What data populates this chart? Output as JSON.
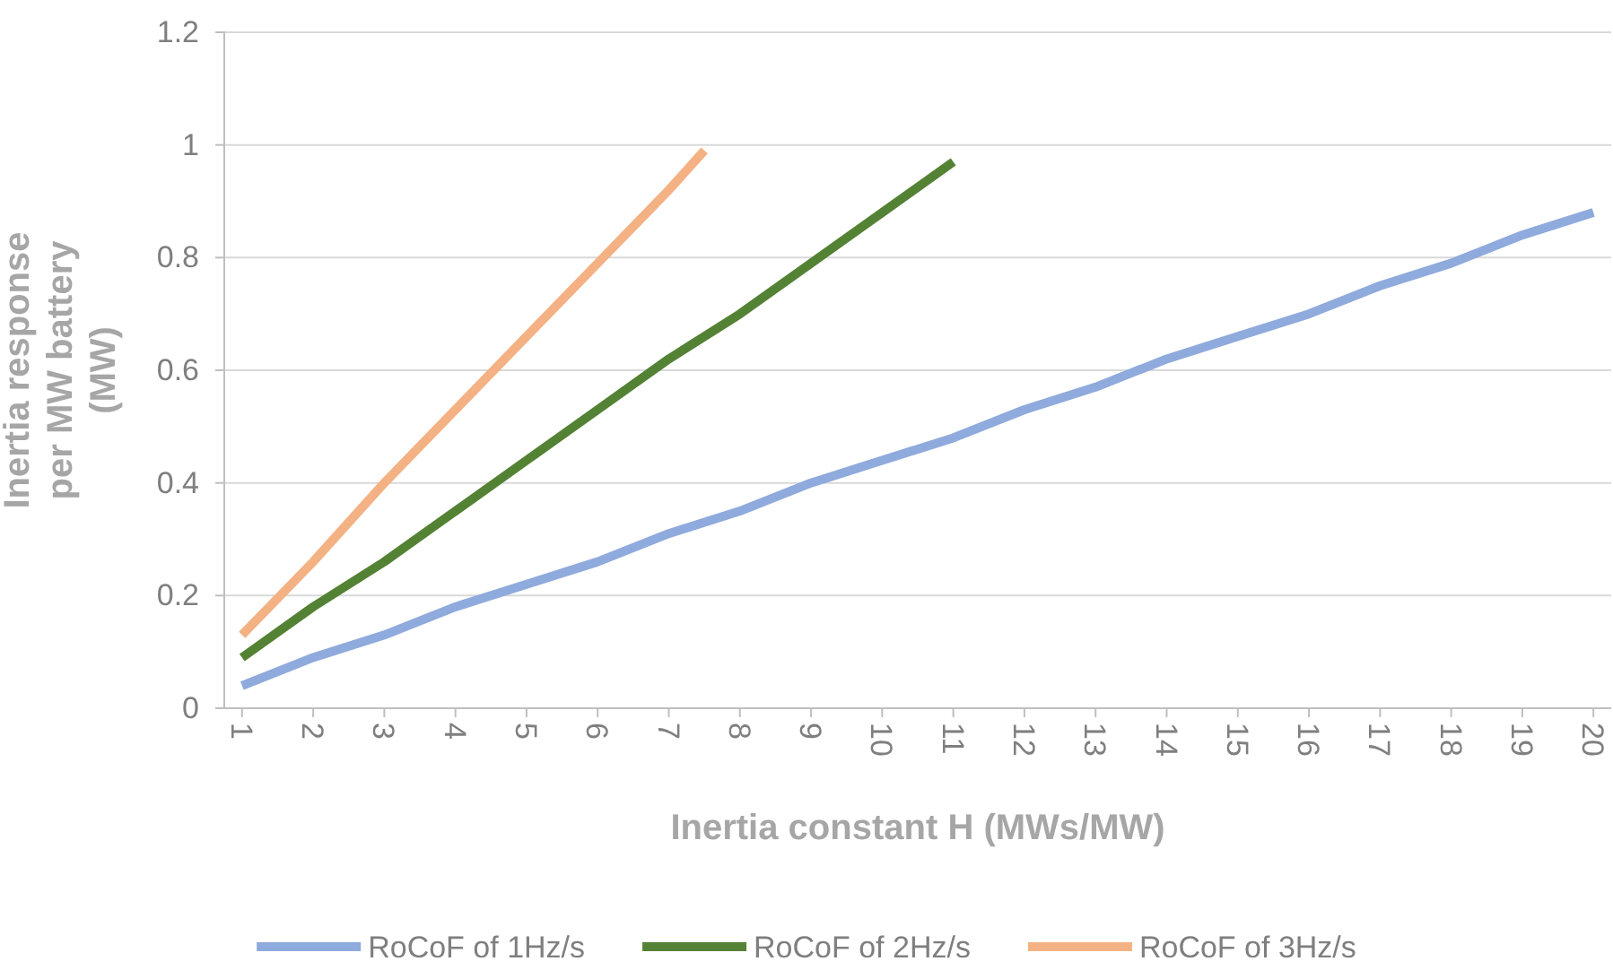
{
  "chart_data": {
    "type": "line",
    "xlabel": "Inertia constant H (MWs/MW)",
    "ylabel": "Inertia response per MW battery (MW)",
    "xlim": [
      0.75,
      20.25
    ],
    "xticks": [
      1,
      2,
      3,
      4,
      5,
      6,
      7,
      8,
      9,
      10,
      11,
      12,
      13,
      14,
      15,
      16,
      17,
      18,
      19,
      20
    ],
    "ylim": [
      0,
      1.2
    ],
    "yticks": [
      0,
      0.2,
      0.4,
      0.6,
      0.8,
      1,
      1.2
    ],
    "grid": "y",
    "legend": "bottom",
    "marker": "none",
    "line_style": "solid",
    "series": [
      {
        "name": "RoCoF of 1Hz/s",
        "color": "#8faadc",
        "x": [
          1,
          2,
          3,
          4,
          5,
          6,
          7,
          8,
          9,
          10,
          11,
          12,
          13,
          14,
          15,
          16,
          17,
          18,
          19,
          20
        ],
        "values": [
          0.04,
          0.09,
          0.13,
          0.18,
          0.22,
          0.26,
          0.31,
          0.35,
          0.4,
          0.44,
          0.48,
          0.53,
          0.57,
          0.62,
          0.66,
          0.7,
          0.75,
          0.79,
          0.84,
          0.88
        ]
      },
      {
        "name": "RoCoF of 2Hz/s",
        "color": "#548235",
        "x": [
          1,
          2,
          3,
          4,
          5,
          6,
          7,
          8,
          9,
          10,
          11
        ],
        "values": [
          0.09,
          0.18,
          0.26,
          0.35,
          0.44,
          0.53,
          0.62,
          0.7,
          0.79,
          0.88,
          0.97
        ]
      },
      {
        "name": "RoCoF of 3Hz/s",
        "color": "#f4b183",
        "x": [
          1,
          2,
          3,
          4,
          5,
          6,
          7,
          7.5
        ],
        "values": [
          0.13,
          0.26,
          0.4,
          0.53,
          0.66,
          0.79,
          0.92,
          0.99
        ]
      }
    ]
  }
}
